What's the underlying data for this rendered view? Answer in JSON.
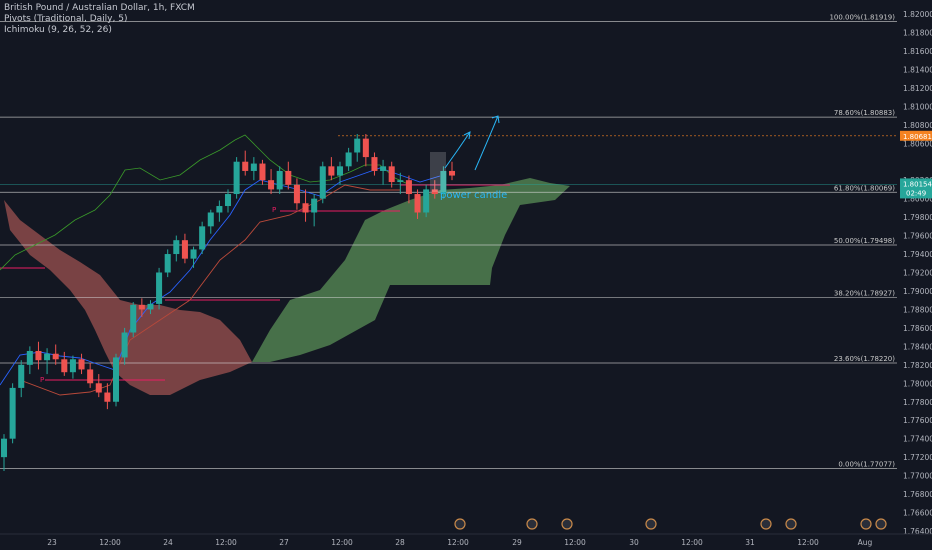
{
  "legend": {
    "title": "British Pound / Australian Dollar, 1h, FXCM",
    "pivots": "Pivots (Traditional, Daily, 5)",
    "ichimoku": "Ichimoku (9, 26, 52, 26)"
  },
  "colors": {
    "background": "#131722",
    "up": "#26a69a",
    "down": "#ef5350",
    "cloud_bull": "#4e7a4e",
    "cloud_bear": "#8c4a4a",
    "fib_line": "#d8d8d8",
    "pivot_line": "#e91e63",
    "tenkan": "#2962ff",
    "kijun": "#b8493a",
    "chikou": "#3a9a2a",
    "annotation": "#29b6f6",
    "price_orange": "#f58220",
    "price_green": "#26a69a"
  },
  "price_axis": {
    "labels": [
      "1.82000",
      "1.81800",
      "1.81600",
      "1.81400",
      "1.81200",
      "1.81000",
      "1.80800",
      "1.80600",
      "1.80200",
      "1.80000",
      "1.79800",
      "1.79600",
      "1.79400",
      "1.79200",
      "1.79000",
      "1.78800",
      "1.78600",
      "1.78400",
      "1.78200",
      "1.78000",
      "1.77800",
      "1.77600",
      "1.77400",
      "1.77200",
      "1.77000",
      "1.76800",
      "1.76600",
      "1.76400"
    ],
    "current_price": "1.80154",
    "countdown": "02:49",
    "target_price": "1.80681"
  },
  "time_axis": {
    "labels": [
      "23",
      "12:00",
      "24",
      "12:00",
      "27",
      "12:00",
      "28",
      "12:00",
      "29",
      "12:00",
      "30",
      "12:00",
      "31",
      "12:00",
      "Aug"
    ]
  },
  "fib_levels": [
    {
      "label": "100.00%(1.81919)",
      "price": 1.81919
    },
    {
      "label": "78.60%(1.80883)",
      "price": 1.80883
    },
    {
      "label": "61.80%(1.80069)",
      "price": 1.80069
    },
    {
      "label": "50.00%(1.79498)",
      "price": 1.79498
    },
    {
      "label": "38.20%(1.78927)",
      "price": 1.78927
    },
    {
      "label": "23.60%(1.78220)",
      "price": 1.7822
    },
    {
      "label": "0.00%(1.77077)",
      "price": 1.77077
    }
  ],
  "annotations": {
    "power_candle": "power candle",
    "pivot_marker": "P"
  },
  "chart_data": {
    "type": "candlestick",
    "title": "British Pound / Australian Dollar, 1h, FXCM",
    "ylim": [
      1.764,
      1.8205
    ],
    "candles": [
      [
        1.772,
        1.7745,
        1.7705,
        1.774
      ],
      [
        1.774,
        1.78,
        1.7735,
        1.7795
      ],
      [
        1.7795,
        1.7825,
        1.7785,
        1.782
      ],
      [
        1.782,
        1.784,
        1.781,
        1.7835
      ],
      [
        1.7835,
        1.7845,
        1.7815,
        1.7825
      ],
      [
        1.7825,
        1.7838,
        1.781,
        1.7832
      ],
      [
        1.7832,
        1.7842,
        1.782,
        1.7826
      ],
      [
        1.7826,
        1.7834,
        1.7808,
        1.7812
      ],
      [
        1.7812,
        1.783,
        1.7805,
        1.7826
      ],
      [
        1.7826,
        1.7832,
        1.781,
        1.7815
      ],
      [
        1.7815,
        1.7822,
        1.7795,
        1.78
      ],
      [
        1.78,
        1.781,
        1.7785,
        1.779
      ],
      [
        1.779,
        1.78,
        1.7772,
        1.778
      ],
      [
        1.778,
        1.7832,
        1.7775,
        1.7828
      ],
      [
        1.7828,
        1.786,
        1.782,
        1.7855
      ],
      [
        1.7855,
        1.7888,
        1.785,
        1.7885
      ],
      [
        1.7885,
        1.7892,
        1.7872,
        1.788
      ],
      [
        1.788,
        1.789,
        1.7875,
        1.7886
      ],
      [
        1.7886,
        1.7925,
        1.788,
        1.792
      ],
      [
        1.792,
        1.7945,
        1.7915,
        1.794
      ],
      [
        1.794,
        1.796,
        1.7932,
        1.7955
      ],
      [
        1.7955,
        1.7962,
        1.793,
        1.7935
      ],
      [
        1.7935,
        1.7948,
        1.7925,
        1.7945
      ],
      [
        1.7945,
        1.7975,
        1.794,
        1.797
      ],
      [
        1.797,
        1.7988,
        1.7962,
        1.7985
      ],
      [
        1.7985,
        1.7998,
        1.7975,
        1.7992
      ],
      [
        1.7992,
        1.801,
        1.7985,
        1.8005
      ],
      [
        1.8005,
        1.8045,
        1.8,
        1.804
      ],
      [
        1.804,
        1.8052,
        1.8025,
        1.803
      ],
      [
        1.803,
        1.8045,
        1.802,
        1.8038
      ],
      [
        1.8038,
        1.8042,
        1.8015,
        1.802
      ],
      [
        1.802,
        1.8032,
        1.8005,
        1.801
      ],
      [
        1.801,
        1.8035,
        1.8005,
        1.803
      ],
      [
        1.803,
        1.804,
        1.801,
        1.8015
      ],
      [
        1.8015,
        1.8022,
        1.7988,
        1.7995
      ],
      [
        1.7995,
        1.801,
        1.7975,
        1.7985
      ],
      [
        1.7985,
        1.8005,
        1.797,
        1.8
      ],
      [
        1.8,
        1.804,
        1.7995,
        1.8035
      ],
      [
        1.8035,
        1.8045,
        1.802,
        1.8025
      ],
      [
        1.8025,
        1.804,
        1.8015,
        1.8035
      ],
      [
        1.8035,
        1.8055,
        1.803,
        1.805
      ],
      [
        1.805,
        1.807,
        1.804,
        1.8065
      ],
      [
        1.8065,
        1.807,
        1.8035,
        1.8045
      ],
      [
        1.8045,
        1.805,
        1.8025,
        1.803
      ],
      [
        1.803,
        1.8042,
        1.8015,
        1.8035
      ],
      [
        1.8035,
        1.804,
        1.8012,
        1.8018
      ],
      [
        1.8018,
        1.8028,
        1.8005,
        1.802
      ],
      [
        1.802,
        1.8025,
        1.7995,
        1.8005
      ],
      [
        1.8005,
        1.801,
        1.7978,
        1.7985
      ],
      [
        1.7985,
        1.8015,
        1.798,
        1.801
      ],
      [
        1.801,
        1.802,
        1.8,
        1.8005
      ],
      [
        1.8005,
        1.8035,
        1.8,
        1.803
      ],
      [
        1.803,
        1.804,
        1.802,
        1.8025
      ]
    ],
    "fib_levels": [
      1.81919,
      1.80883,
      1.80069,
      1.79498,
      1.78927,
      1.7822,
      1.77077
    ]
  }
}
